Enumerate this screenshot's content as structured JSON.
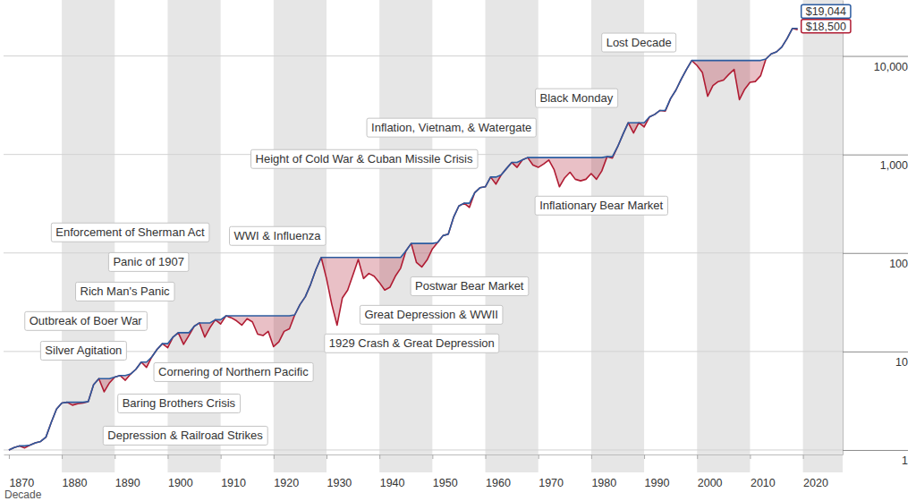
{
  "chart_data": {
    "type": "line",
    "log": "y",
    "grid": "y",
    "x_label": "Decade",
    "xlim": [
      1869,
      2027.5
    ],
    "xticks": [
      1870,
      1880,
      1890,
      1900,
      1910,
      1920,
      1930,
      1940,
      1950,
      1960,
      1970,
      1980,
      1990,
      2000,
      2010,
      2020
    ],
    "ylim": [
      0.9,
      37000
    ],
    "yticks": [
      1,
      10,
      100,
      {
        "value": 1000,
        "label": "1,000"
      },
      {
        "value": 10000,
        "label": "10,000"
      }
    ],
    "x": [
      1870,
      1871,
      1872,
      1873,
      1874,
      1875,
      1876,
      1877,
      1878,
      1879,
      1880,
      1881,
      1882,
      1883,
      1884,
      1885,
      1886,
      1887,
      1888,
      1889,
      1890,
      1891,
      1892,
      1893,
      1894,
      1895,
      1896,
      1897,
      1898,
      1899,
      1900,
      1901,
      1902,
      1903,
      1904,
      1905,
      1906,
      1907,
      1908,
      1909,
      1910,
      1911,
      1912,
      1913,
      1914,
      1915,
      1916,
      1917,
      1918,
      1919,
      1920,
      1921,
      1922,
      1923,
      1924,
      1925,
      1926,
      1927,
      1928,
      1929,
      1930,
      1931,
      1932,
      1933,
      1934,
      1935,
      1936,
      1937,
      1938,
      1939,
      1940,
      1941,
      1942,
      1943,
      1944,
      1945,
      1946,
      1947,
      1948,
      1949,
      1950,
      1951,
      1952,
      1953,
      1954,
      1955,
      1956,
      1957,
      1958,
      1959,
      1960,
      1961,
      1962,
      1963,
      1964,
      1965,
      1966,
      1967,
      1968,
      1969,
      1970,
      1971,
      1972,
      1973,
      1974,
      1975,
      1976,
      1977,
      1978,
      1979,
      1980,
      1981,
      1982,
      1983,
      1984,
      1985,
      1986,
      1987,
      1988,
      1989,
      1990,
      1991,
      1992,
      1993,
      1994,
      1995,
      1996,
      1997,
      1998,
      1999,
      2000,
      2001,
      2002,
      2003,
      2004,
      2005,
      2006,
      2007,
      2008,
      2009,
      2010,
      2011,
      2012,
      2013,
      2014,
      2015,
      2016,
      2017,
      2018,
      2019
    ],
    "series": [
      {
        "type": "line",
        "color": "#2b5b9f",
        "values": [
          1,
          1.06,
          1.1,
          1.1,
          1.12,
          1.18,
          1.22,
          1.35,
          1.9,
          2.6,
          3,
          3.05,
          3.05,
          3.05,
          3.05,
          3.1,
          4.6,
          5.3,
          5.3,
          5.3,
          5.5,
          5.7,
          5.7,
          5.9,
          6.6,
          7.8,
          7.8,
          8.8,
          10.5,
          12,
          12,
          14,
          15.5,
          15.5,
          15.5,
          18,
          19.5,
          19.5,
          19.5,
          21,
          21,
          23,
          23,
          23,
          23,
          23,
          23,
          23,
          23,
          23,
          23,
          23,
          23,
          23,
          23.5,
          30,
          36,
          48,
          68,
          90,
          90,
          90,
          90,
          90,
          90,
          90,
          90,
          90,
          90,
          90,
          90,
          90,
          90,
          90,
          90,
          105,
          125,
          125,
          125,
          125,
          125,
          128,
          150,
          155,
          230,
          300,
          320,
          320,
          410,
          460,
          470,
          590,
          590,
          620,
          720,
          830,
          830,
          880,
          930,
          930,
          930,
          930,
          930,
          930,
          930,
          930,
          930,
          930,
          930,
          930,
          930,
          930,
          930,
          950,
          950,
          1200,
          1600,
          2100,
          2100,
          2100,
          2100,
          2400,
          2550,
          2800,
          2800,
          3700,
          4500,
          5800,
          7300,
          9000,
          9000,
          9000,
          9000,
          9000,
          9000,
          9000,
          9000,
          9000,
          9000,
          9000,
          9000,
          9000,
          9000,
          9300,
          10500,
          11000,
          12300,
          15000,
          19044,
          19044
        ]
      },
      {
        "type": "area",
        "color": "#b01c33",
        "values": [
          1,
          1.06,
          1.1,
          1.05,
          1.12,
          1.18,
          1.22,
          1.35,
          1.9,
          2.6,
          3,
          3.05,
          2.85,
          2.95,
          3,
          3.1,
          4.6,
          5.3,
          3.9,
          4.8,
          5.5,
          5.7,
          5.1,
          5.9,
          6.6,
          7.8,
          6.9,
          8.8,
          10.5,
          12,
          10.9,
          14,
          15.5,
          11.8,
          14.5,
          18,
          19.5,
          14,
          17.5,
          21,
          19,
          23,
          22,
          20.5,
          18.5,
          21.5,
          20,
          15,
          14.5,
          16,
          11.2,
          12.5,
          16,
          17,
          23.5,
          30,
          36,
          48,
          68,
          90,
          55,
          30,
          18.5,
          35,
          42,
          60,
          86,
          55,
          62,
          58,
          50,
          42,
          45,
          58,
          70,
          105,
          125,
          80,
          72,
          85,
          110,
          128,
          150,
          155,
          230,
          300,
          320,
          290,
          410,
          460,
          470,
          590,
          500,
          620,
          720,
          830,
          740,
          880,
          930,
          780,
          740,
          800,
          880,
          700,
          470,
          580,
          660,
          560,
          540,
          560,
          640,
          560,
          680,
          950,
          920,
          1200,
          1600,
          2100,
          1650,
          2100,
          1900,
          2400,
          2550,
          2800,
          2750,
          3700,
          4500,
          5800,
          7300,
          9000,
          8000,
          6800,
          3900,
          5000,
          5500,
          5700,
          6500,
          7300,
          3600,
          4600,
          5400,
          5500,
          6300,
          9300,
          10500,
          11000,
          12300,
          15000,
          19044,
          18500
        ]
      }
    ],
    "end_labels": [
      {
        "value": 19044,
        "label": "$19,044",
        "color": "#2b5b9f"
      },
      {
        "value": 18500,
        "label": "$18,500",
        "color": "#b01c33"
      }
    ],
    "annotations": [
      {
        "text": "Lost Decade",
        "x": 1989.0,
        "y": 13700
      },
      {
        "text": "Black Monday",
        "x": 1977.2,
        "y": 3740
      },
      {
        "text": "Inflation, Vietnam, & Watergate",
        "x": 1953.6,
        "y": 1875
      },
      {
        "text": "Height of Cold War & Cuban Missile Crisis",
        "x": 1937.1,
        "y": 900
      },
      {
        "text": "Inflationary Bear Market",
        "x": 1981.9,
        "y": 303
      },
      {
        "text": "Enforcement of Sherman Act",
        "x": 1892.9,
        "y": 162
      },
      {
        "text": "WWI & Influenza",
        "x": 1920.7,
        "y": 149
      },
      {
        "text": "Panic of 1907",
        "x": 1896.4,
        "y": 81
      },
      {
        "text": "Postwar Bear Market",
        "x": 1957.0,
        "y": 46
      },
      {
        "text": "Rich Man's Panic",
        "x": 1891.9,
        "y": 40.6
      },
      {
        "text": "Great Depression & WWII",
        "x": 1949.8,
        "y": 23.6
      },
      {
        "text": "Outbreak of Boer War",
        "x": 1884.5,
        "y": 20.4
      },
      {
        "text": "1929 Crash & Great Depression",
        "x": 1946.1,
        "y": 12.1
      },
      {
        "text": "Silver Agitation",
        "x": 1884.1,
        "y": 10.2
      },
      {
        "text": "Cornering of Northern Pacific",
        "x": 1912.4,
        "y": 6.18
      },
      {
        "text": "Baring Brothers Crisis",
        "x": 1902.1,
        "y": 2.97
      },
      {
        "text": "Depression & Railroad Strikes",
        "x": 1903.3,
        "y": 1.4
      }
    ]
  }
}
